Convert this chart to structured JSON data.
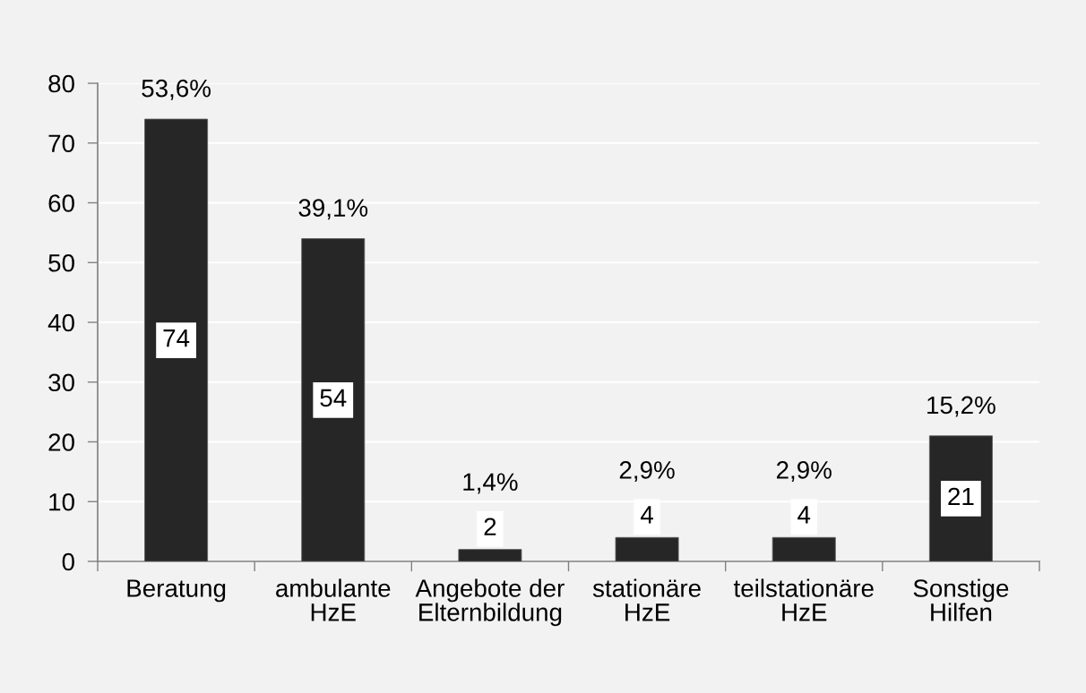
{
  "chart_data": {
    "type": "bar",
    "categories": [
      "Beratung",
      "ambulante\nHzE",
      "Angebote der\nElternbildung",
      "stationäre\nHzE",
      "teilstationäre\nHzE",
      "Sonstige\nHilfen"
    ],
    "values": [
      74,
      54,
      2,
      4,
      4,
      21
    ],
    "color": "#262626",
    "ylim": [
      0,
      80
    ],
    "yticks": [
      0,
      10,
      20,
      30,
      40,
      50,
      60,
      70,
      80
    ],
    "grid": "y",
    "data_labels": true,
    "annotations": [
      {
        "text": "53,6%",
        "x": "Beratung",
        "y": 74
      },
      {
        "text": "39,1%",
        "x": "ambulante\nHzE",
        "y": 54
      },
      {
        "text": "1,4%",
        "x": "Angebote der\nElternbildung",
        "y": 2
      },
      {
        "text": "2,9%",
        "x": "stationäre\nHzE",
        "y": 4
      },
      {
        "text": "2,9%",
        "x": "teilstationäre\nHzE",
        "y": 4
      },
      {
        "text": "15,2%",
        "x": "Sonstige\nHilfen",
        "y": 21
      }
    ]
  }
}
